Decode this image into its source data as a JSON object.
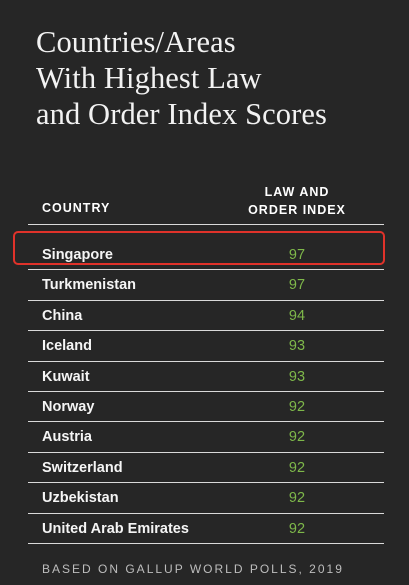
{
  "chart_data": {
    "type": "table",
    "title_lines": [
      "Countries/Areas",
      "With Highest Law",
      "and Order Index Scores"
    ],
    "columns": {
      "country": "COUNTRY",
      "index_line1": "LAW AND",
      "index_line2": "ORDER INDEX"
    },
    "categories": [
      "Singapore",
      "Turkmenistan",
      "China",
      "Iceland",
      "Kuwait",
      "Norway",
      "Austria",
      "Switzerland",
      "Uzbekistan",
      "United Arab Emirates"
    ],
    "values": [
      97,
      97,
      94,
      93,
      93,
      92,
      92,
      92,
      92,
      92
    ],
    "highlighted": "Singapore",
    "source": "BASED ON GALLUP WORLD POLLS, 2019"
  },
  "colors": {
    "background": "#262626",
    "score": "#7eb84a",
    "highlight": "#e0322a"
  }
}
